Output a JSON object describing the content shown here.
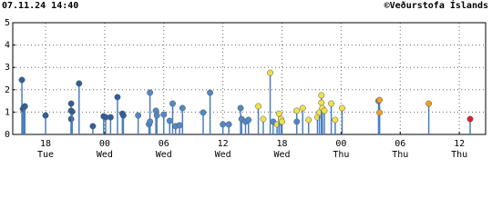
{
  "chart_data": {
    "type": "stem",
    "title": "07.11.24 14:40",
    "credit": "©Veðurstofa Íslands",
    "xlim": [
      14.67,
      62.67
    ],
    "ylim": [
      0,
      5
    ],
    "yticks": [
      0,
      1,
      2,
      3,
      4,
      5
    ],
    "xticks": [
      {
        "value": 18,
        "label": "18"
      },
      {
        "value": 24,
        "label": "00"
      },
      {
        "value": 30,
        "label": "06"
      },
      {
        "value": 36,
        "label": "12"
      },
      {
        "value": 42,
        "label": "18"
      },
      {
        "value": 48,
        "label": "00"
      },
      {
        "value": 54,
        "label": "06"
      },
      {
        "value": 60,
        "label": "12"
      }
    ],
    "xtick_days": [
      "Tue",
      "Wed",
      "Wed",
      "Wed",
      "Wed",
      "Thu",
      "Thu",
      "Thu"
    ],
    "grid": true,
    "stem_color": "#4a7ec0",
    "series": [
      {
        "color": "#2f5f9a",
        "x": [
          15.6,
          15.7,
          15.8,
          15.9,
          18.0,
          20.6,
          20.6,
          20.6,
          20.7,
          21.4,
          22.8,
          23.9,
          24.1,
          24.6,
          25.3,
          25.8,
          25.9
        ],
        "values": [
          2.44,
          1.14,
          1.22,
          1.26,
          0.85,
          1.38,
          1.06,
          0.69,
          1.02,
          2.28,
          0.37,
          0.81,
          0.77,
          0.77,
          1.67,
          0.93,
          0.85
        ]
      },
      {
        "color": "#5088c8",
        "x": [
          27.4,
          28.5,
          28.6,
          28.6,
          29.2,
          29.3,
          30.0,
          30.6,
          30.9,
          31.2,
          31.6,
          31.9,
          34.0,
          34.7,
          36.0,
          36.6,
          37.8,
          37.9,
          38.3,
          38.6,
          41.1,
          43.5,
          51.8
        ],
        "values": [
          0.85,
          0.45,
          1.87,
          0.57,
          1.06,
          0.85,
          0.89,
          0.61,
          1.38,
          0.37,
          0.41,
          1.18,
          0.98,
          1.87,
          0.45,
          0.45,
          1.18,
          0.69,
          0.57,
          0.65,
          0.57,
          0.57,
          1.5
        ]
      },
      {
        "color": "#f0e04a",
        "x": [
          39.6,
          40.1,
          40.8,
          41.5,
          41.7,
          41.9,
          42.0,
          43.5,
          44.1,
          44.7,
          45.6,
          45.8,
          46.0,
          46.0,
          46.1,
          46.3,
          47.0,
          47.4,
          48.1
        ],
        "values": [
          1.26,
          0.69,
          2.76,
          0.45,
          0.93,
          0.69,
          0.57,
          1.06,
          1.18,
          0.65,
          0.77,
          0.98,
          1.75,
          1.42,
          1.18,
          1.06,
          1.38,
          0.65,
          1.18
        ]
      },
      {
        "color": "#f0a020",
        "x": [
          51.9,
          51.9,
          56.9
        ],
        "values": [
          1.54,
          0.98,
          1.38
        ]
      },
      {
        "color": "#e0202a",
        "x": [
          61.1
        ],
        "values": [
          0.69
        ]
      }
    ]
  }
}
